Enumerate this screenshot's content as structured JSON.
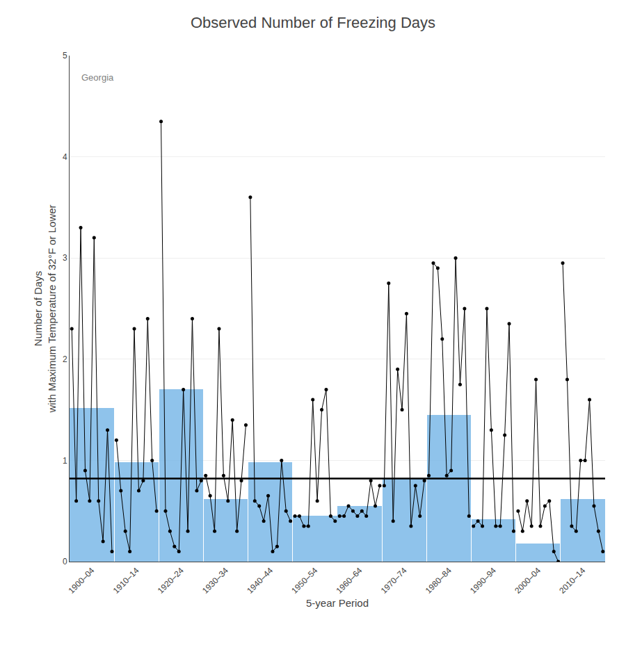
{
  "chart_data": {
    "type": "bar",
    "title": "Observed Number of Freezing Days",
    "x_label": "5-year Period",
    "y_label": "Number of Days\nwith Maximum Temperature of 32°F or Lower",
    "annotations": [
      "Georgia"
    ],
    "categories": [
      "1900–04",
      "1910–14",
      "1920–24",
      "1930–34",
      "1940–44",
      "1950–54",
      "1960–64",
      "1970–74",
      "1980–84",
      "1990–94",
      "2000–04",
      "2010–14"
    ],
    "series": [
      {
        "type": "bar",
        "color": "#7CB9E8",
        "values": [
          1.52,
          0.98,
          1.7,
          0.62,
          0.98,
          0.45,
          0.55,
          0.82,
          1.45,
          0.42,
          0.18,
          0.62
        ]
      },
      {
        "type": "line",
        "marker": "circle",
        "color": "#000000",
        "values": [
          [
            2.3,
            0.6,
            3.3,
            0.9,
            0.6,
            3.2,
            0.6,
            0.2,
            1.3,
            0.1
          ],
          [
            1.2,
            0.7,
            0.3,
            0.1,
            2.3,
            0.7,
            0.8,
            2.4,
            1.0,
            0.5
          ],
          [
            4.35,
            0.5,
            0.3,
            0.15,
            0.1,
            1.7,
            0.3,
            2.4,
            0.7,
            0.8
          ],
          [
            0.85,
            0.65,
            0.3,
            2.3,
            0.85,
            0.6,
            1.4,
            0.3,
            0.8,
            1.35
          ],
          [
            3.6,
            0.6,
            0.55,
            0.4,
            0.65,
            0.1,
            0.15,
            1.0,
            0.5,
            0.4
          ],
          [
            0.45,
            0.45,
            0.35,
            0.35,
            1.6,
            0.6,
            1.5,
            1.7,
            0.45,
            0.4
          ],
          [
            0.45,
            0.45,
            0.55,
            0.5,
            0.45,
            0.5,
            0.45,
            0.8,
            0.55,
            0.75
          ],
          [
            0.75,
            2.75,
            0.4,
            1.9,
            1.5,
            2.45,
            0.35,
            0.75,
            0.45,
            0.8
          ],
          [
            0.85,
            2.95,
            2.9,
            2.2,
            0.85,
            0.9,
            3.0,
            1.75,
            2.5,
            0.45
          ],
          [
            0.35,
            0.4,
            0.35,
            2.5,
            1.3,
            0.35,
            0.35,
            1.25,
            2.35,
            0.3
          ],
          [
            0.5,
            0.3,
            0.6,
            0.35,
            1.8,
            0.35,
            0.55,
            0.6,
            0.1,
            0.0
          ],
          [
            2.95,
            1.8,
            0.35,
            0.3,
            1.0,
            1.0,
            1.6,
            0.55,
            0.3,
            0.1
          ]
        ]
      }
    ],
    "reference_line": 0.82,
    "reference_color": "#000000",
    "ylim": [
      0,
      5
    ],
    "yticks": [
      0,
      1,
      2,
      3,
      4,
      5
    ],
    "grid": true
  }
}
